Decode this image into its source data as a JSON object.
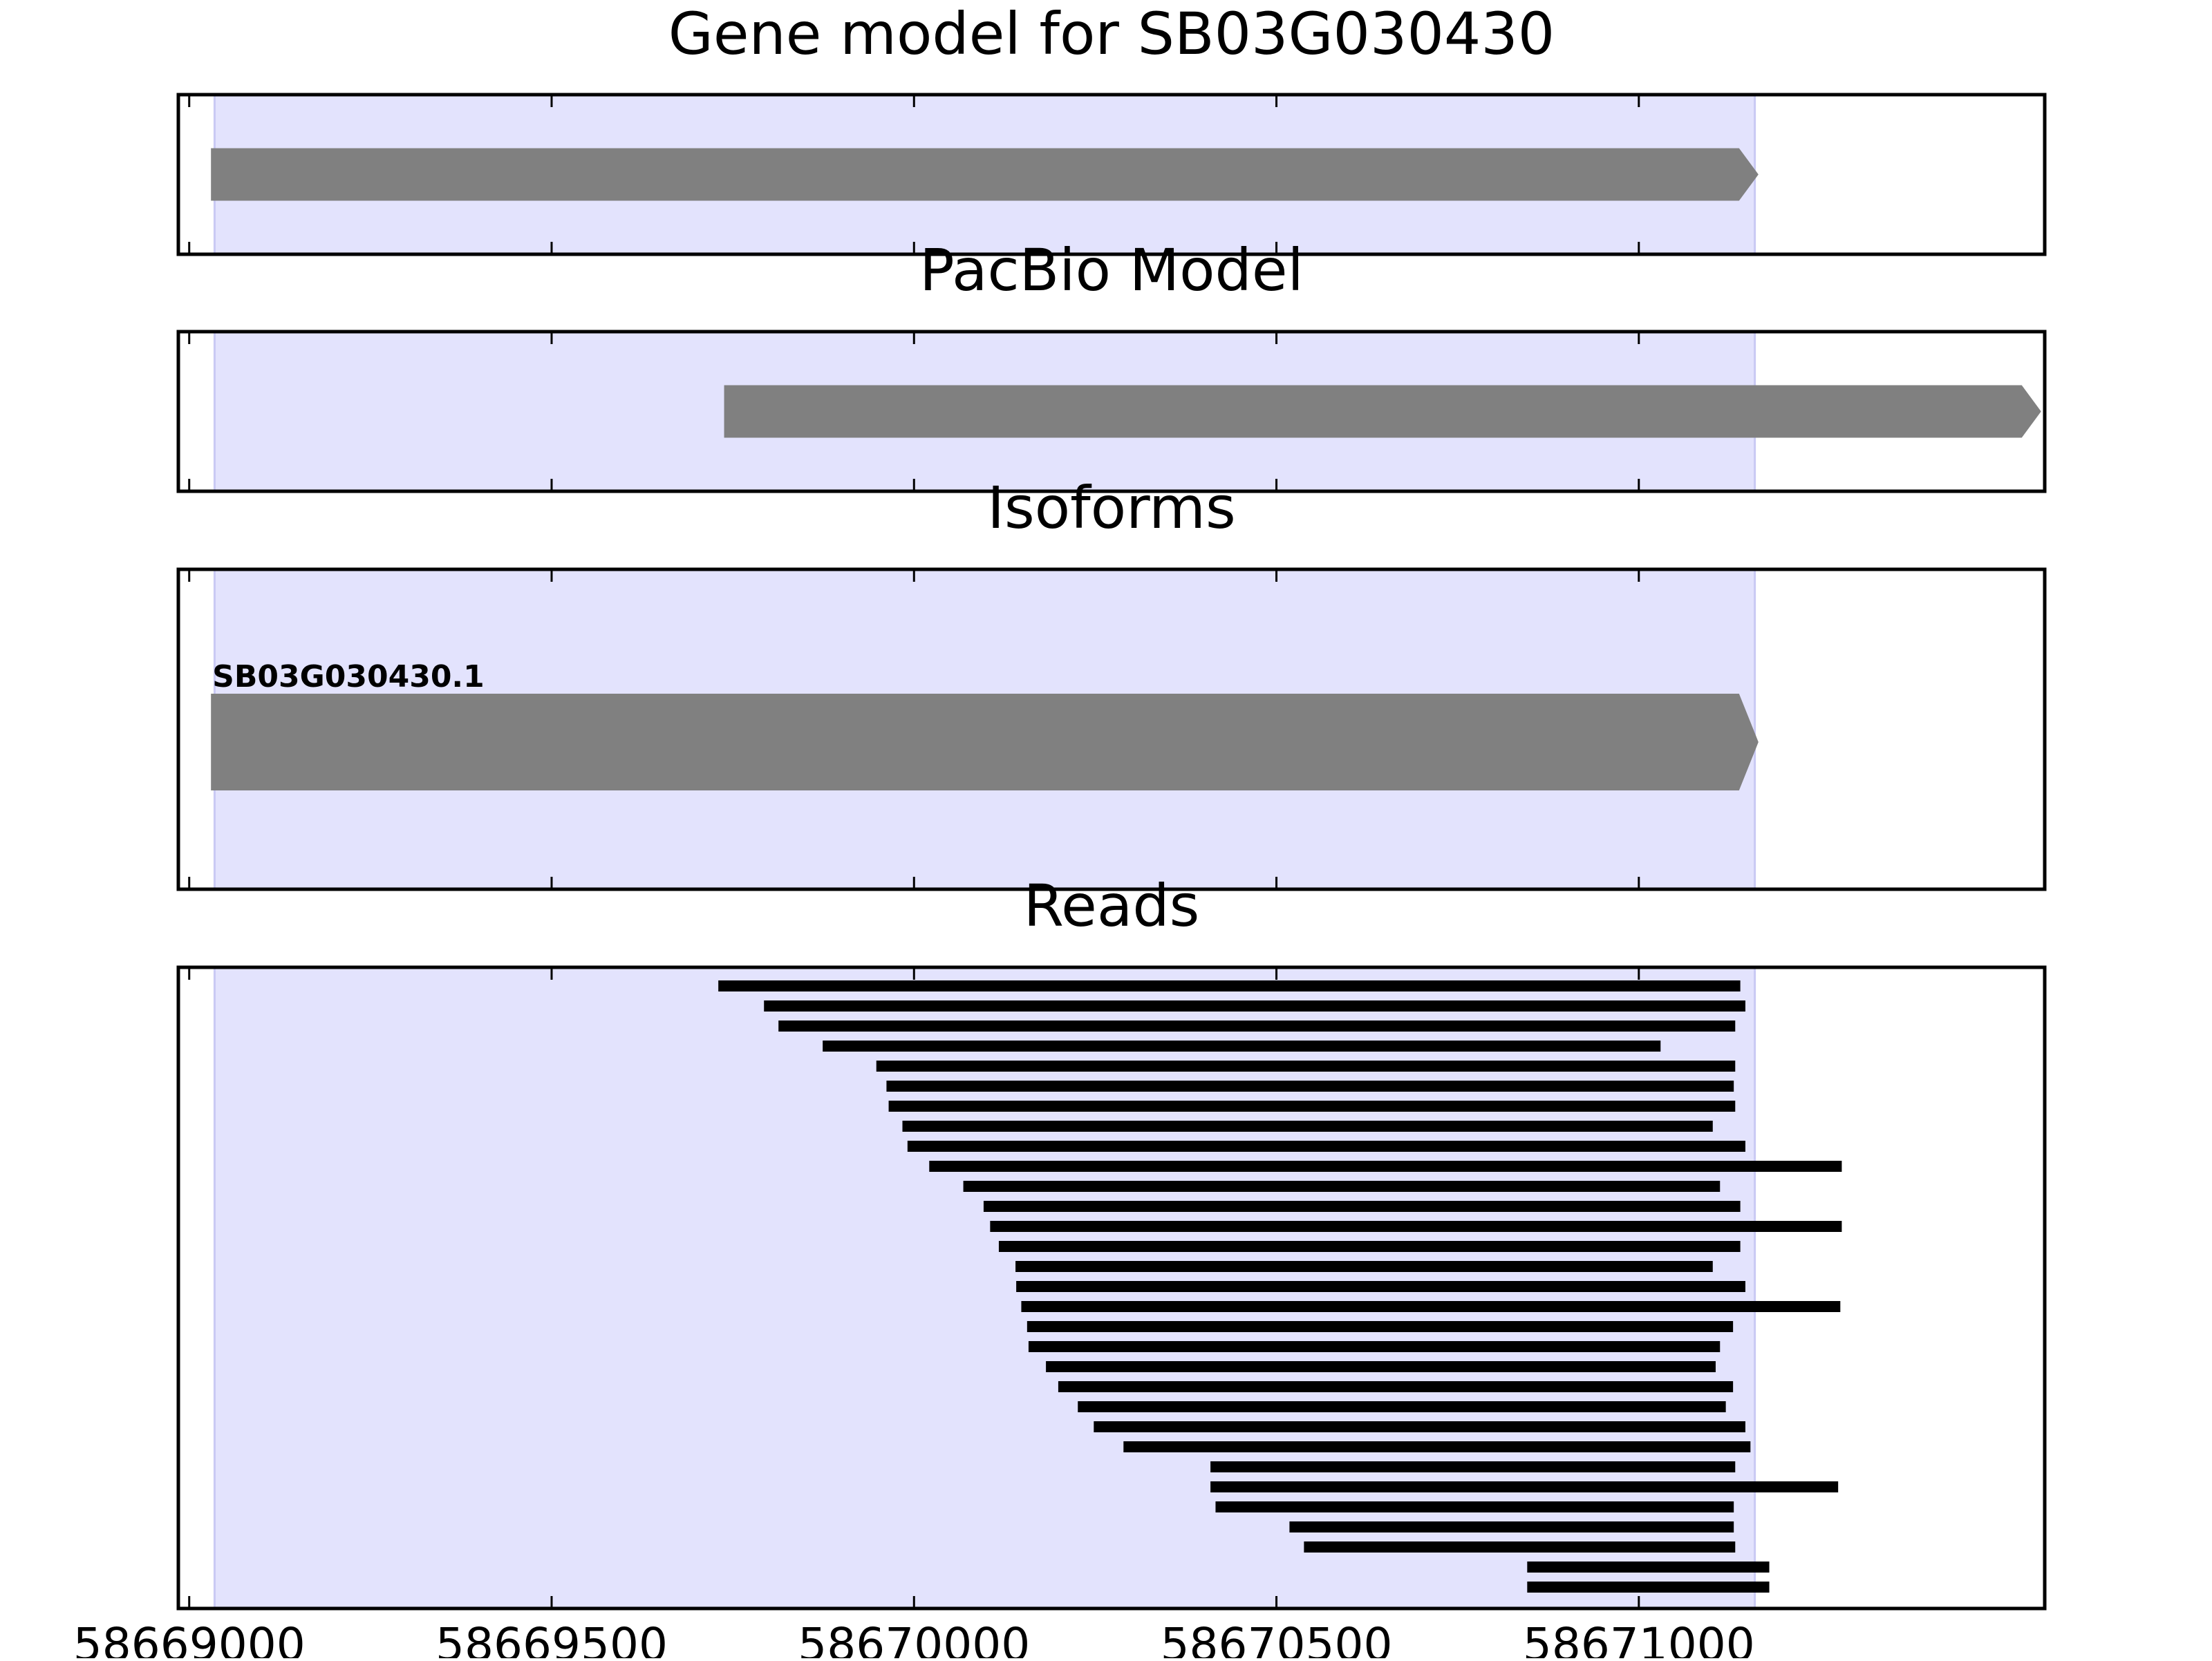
{
  "chart_data": {
    "type": "gene-track",
    "title": "Gene model for SB03G030430",
    "highlight_region": [
      58669035,
      58671160
    ],
    "xlim": [
      58668985,
      58671560
    ],
    "x_ticks": [
      58669000,
      58669500,
      58670000,
      58670500,
      58671000
    ],
    "x_tick_labels": [
      "58669000",
      "58669500",
      "58670000",
      "58670500",
      "58671000"
    ],
    "colors": {
      "highlight": "#e3e3fd",
      "feature": "#808080",
      "read": "#000000",
      "frame": "#000000"
    },
    "panels": [
      {
        "id": "gene-model",
        "title": "Gene model for SB03G030430",
        "features": [
          {
            "start": 58669030,
            "end": 58671165,
            "strand": "+"
          }
        ]
      },
      {
        "id": "pacbio-model",
        "title": "PacBio Model",
        "features": [
          {
            "start": 58669738,
            "end": 58671555,
            "strand": "+"
          }
        ]
      },
      {
        "id": "isoforms",
        "title": "Isoforms",
        "features": [
          {
            "label": "SB03G030430.1",
            "start": 58669030,
            "end": 58671165,
            "strand": "+"
          }
        ]
      },
      {
        "id": "reads",
        "title": "Reads",
        "reads": [
          {
            "start": 58669730,
            "end": 58671140
          },
          {
            "start": 58669793,
            "end": 58671147
          },
          {
            "start": 58669813,
            "end": 58671133
          },
          {
            "start": 58669874,
            "end": 58671030
          },
          {
            "start": 58669948,
            "end": 58671133
          },
          {
            "start": 58669962,
            "end": 58671131
          },
          {
            "start": 58669965,
            "end": 58671133
          },
          {
            "start": 58669984,
            "end": 58671102
          },
          {
            "start": 58669991,
            "end": 58671147
          },
          {
            "start": 58670021,
            "end": 58671280
          },
          {
            "start": 58670068,
            "end": 58671112
          },
          {
            "start": 58670096,
            "end": 58671140
          },
          {
            "start": 58670105,
            "end": 58671280
          },
          {
            "start": 58670117,
            "end": 58671140
          },
          {
            "start": 58670140,
            "end": 58671102
          },
          {
            "start": 58670141,
            "end": 58671147
          },
          {
            "start": 58670148,
            "end": 58671278
          },
          {
            "start": 58670156,
            "end": 58671130
          },
          {
            "start": 58670158,
            "end": 58671112
          },
          {
            "start": 58670182,
            "end": 58671106
          },
          {
            "start": 58670199,
            "end": 58671130
          },
          {
            "start": 58670226,
            "end": 58671120
          },
          {
            "start": 58670248,
            "end": 58671147
          },
          {
            "start": 58670289,
            "end": 58671154
          },
          {
            "start": 58670409,
            "end": 58671133
          },
          {
            "start": 58670409,
            "end": 58671275
          },
          {
            "start": 58670416,
            "end": 58671131
          },
          {
            "start": 58670518,
            "end": 58671131
          },
          {
            "start": 58670538,
            "end": 58671133
          },
          {
            "start": 58670846,
            "end": 58671180
          },
          {
            "start": 58670846,
            "end": 58671180
          }
        ]
      }
    ]
  }
}
